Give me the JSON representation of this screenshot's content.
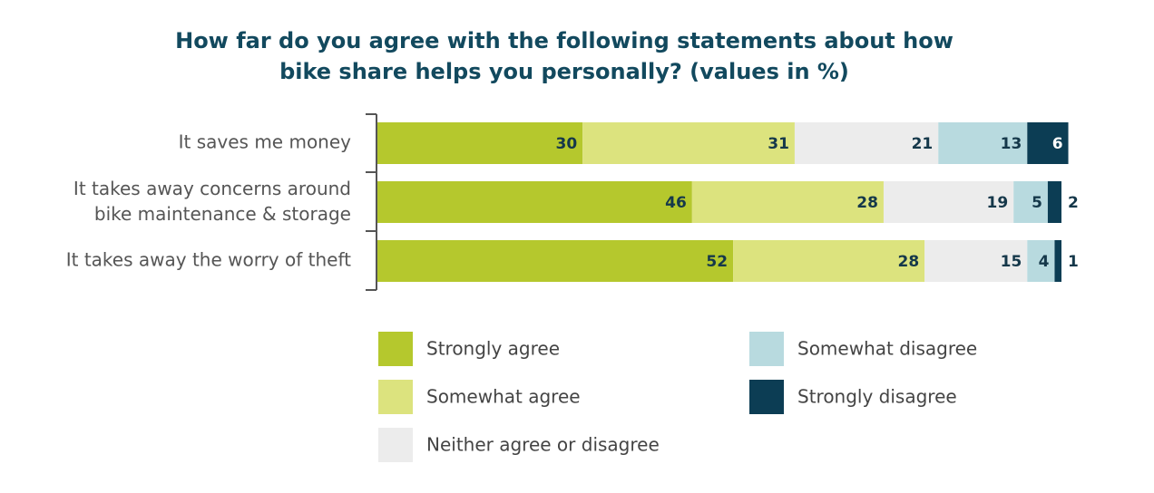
{
  "chart_data": {
    "type": "stacked-bar-horizontal",
    "title": "How far do you agree with the following statements about how\nbike share helps you personally? (values in %)",
    "categories": [
      "It saves me money",
      "It takes away concerns around\nbike maintenance & storage",
      "It takes away the worry of theft"
    ],
    "series": [
      {
        "name": "Strongly agree",
        "color": "#b5c82d",
        "values": [
          30,
          46,
          52
        ]
      },
      {
        "name": "Somewhat agree",
        "color": "#dce37e",
        "values": [
          31,
          28,
          28
        ]
      },
      {
        "name": "Neither agree or disagree",
        "color": "#ececec",
        "values": [
          21,
          19,
          15
        ]
      },
      {
        "name": "Somewhat disagree",
        "color": "#b8dadf",
        "values": [
          13,
          5,
          4
        ]
      },
      {
        "name": "Strongly disagree",
        "color": "#0c3d54",
        "values": [
          6,
          2,
          1
        ]
      }
    ]
  }
}
